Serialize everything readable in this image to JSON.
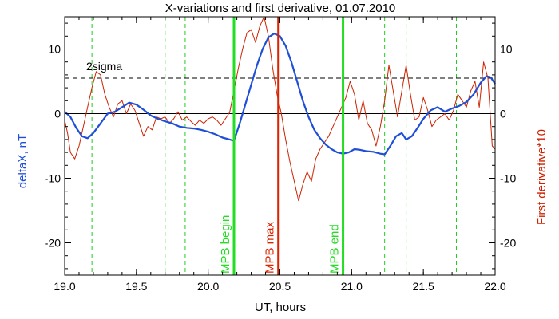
{
  "chart_data": {
    "type": "line",
    "title": "X-variations and first derivative, 01.07.2010",
    "xlabel": "UT, hours",
    "ylabel_left": "deltaX, nT",
    "ylabel_right": "First derivative*10",
    "xlim": [
      19.0,
      22.0
    ],
    "ylim": [
      -25,
      15
    ],
    "xticks": [
      "19.0",
      "19.5",
      "20.0",
      "20.5",
      "21.0",
      "21.5",
      "22.0"
    ],
    "xtick_values": [
      19.0,
      19.5,
      20.0,
      20.5,
      21.0,
      21.5,
      22.0
    ],
    "yticks": [
      "-20",
      "-10",
      "0",
      "10"
    ],
    "ytick_values": [
      -20,
      -10,
      0,
      10
    ],
    "grid": false,
    "colors": {
      "deltaX": "#1f4fd6",
      "derivative": "#cc2200",
      "mpb_begin_end": "#22dd22",
      "mpb_max": "#dd2200",
      "dashed_green": "#22cc22",
      "sigma": "#000000"
    },
    "sigma_line": {
      "label": "2sigma",
      "y": 5.5
    },
    "zero_line_y": 0,
    "markers": [
      {
        "label": "MPB begin",
        "x": 20.18,
        "color": "#22dd22"
      },
      {
        "label": "MPB max",
        "x": 20.49,
        "color": "#dd2200"
      },
      {
        "label": "MPB end",
        "x": 20.94,
        "color": "#22dd22"
      }
    ],
    "dashed_verticals": [
      19.19,
      19.7,
      19.84,
      21.23,
      21.38,
      21.73
    ],
    "series": [
      {
        "name": "deltaX",
        "x": [
          19.0,
          19.04,
          19.08,
          19.12,
          19.16,
          19.2,
          19.25,
          19.3,
          19.35,
          19.4,
          19.45,
          19.5,
          19.55,
          19.6,
          19.65,
          19.7,
          19.75,
          19.8,
          19.85,
          19.9,
          19.95,
          20.0,
          20.05,
          20.1,
          20.15,
          20.18,
          20.22,
          20.26,
          20.3,
          20.34,
          20.38,
          20.42,
          20.46,
          20.5,
          20.54,
          20.58,
          20.62,
          20.66,
          20.7,
          20.74,
          20.78,
          20.82,
          20.86,
          20.9,
          20.94,
          20.98,
          21.02,
          21.06,
          21.1,
          21.15,
          21.2,
          21.23,
          21.27,
          21.31,
          21.35,
          21.38,
          21.42,
          21.46,
          21.5,
          21.55,
          21.6,
          21.65,
          21.7,
          21.75,
          21.8,
          21.85,
          21.9,
          21.94,
          21.97,
          22.0
        ],
        "values": [
          0.3,
          -0.5,
          -2.2,
          -3.5,
          -3.8,
          -3.0,
          -1.5,
          0.0,
          0.3,
          1.0,
          1.7,
          1.4,
          0.6,
          -0.3,
          -0.8,
          -1.2,
          -1.5,
          -2.0,
          -2.2,
          -2.3,
          -2.5,
          -2.8,
          -3.2,
          -3.7,
          -4.0,
          -4.2,
          -1.5,
          1.5,
          4.5,
          7.5,
          10.0,
          11.8,
          12.4,
          12.0,
          10.5,
          8.0,
          5.0,
          2.0,
          -0.5,
          -2.5,
          -3.8,
          -4.8,
          -5.5,
          -6.0,
          -6.2,
          -6.0,
          -5.5,
          -5.6,
          -5.8,
          -5.9,
          -6.2,
          -6.3,
          -5.0,
          -3.5,
          -3.0,
          -4.0,
          -3.5,
          -2.2,
          -0.8,
          0.5,
          1.0,
          0.3,
          0.8,
          1.2,
          1.8,
          3.0,
          4.8,
          5.8,
          5.6,
          4.6
        ]
      },
      {
        "name": "derivative",
        "x": [
          19.0,
          19.02,
          19.04,
          19.07,
          19.1,
          19.13,
          19.16,
          19.19,
          19.22,
          19.25,
          19.28,
          19.31,
          19.34,
          19.37,
          19.4,
          19.43,
          19.46,
          19.49,
          19.52,
          19.55,
          19.58,
          19.61,
          19.64,
          19.67,
          19.7,
          19.73,
          19.76,
          19.79,
          19.82,
          19.85,
          19.88,
          19.91,
          19.94,
          19.97,
          20.0,
          20.03,
          20.06,
          20.09,
          20.12,
          20.15,
          20.18,
          20.21,
          20.24,
          20.27,
          20.3,
          20.33,
          20.36,
          20.39,
          20.42,
          20.45,
          20.48,
          20.51,
          20.54,
          20.57,
          20.6,
          20.63,
          20.66,
          20.69,
          20.72,
          20.75,
          20.78,
          20.81,
          20.84,
          20.87,
          20.9,
          20.93,
          20.96,
          20.99,
          21.02,
          21.05,
          21.08,
          21.11,
          21.14,
          21.17,
          21.2,
          21.23,
          21.26,
          21.29,
          21.32,
          21.35,
          21.38,
          21.41,
          21.44,
          21.47,
          21.5,
          21.53,
          21.56,
          21.59,
          21.62,
          21.65,
          21.68,
          21.71,
          21.74,
          21.77,
          21.8,
          21.83,
          21.86,
          21.89,
          21.92,
          21.95,
          21.98,
          22.0
        ],
        "values": [
          -1.0,
          -3.0,
          -6.0,
          -7.0,
          -5.0,
          -2.0,
          1.0,
          4.0,
          6.5,
          6.0,
          3.0,
          1.0,
          -0.5,
          1.5,
          2.0,
          0.0,
          1.5,
          0.5,
          -1.5,
          -3.5,
          -2.0,
          -2.5,
          -0.5,
          -0.8,
          -0.5,
          -1.5,
          -0.8,
          0.3,
          -1.0,
          -0.5,
          -1.2,
          -1.8,
          -1.0,
          -1.5,
          -0.8,
          -0.5,
          -1.0,
          -1.8,
          -0.8,
          0.2,
          3.5,
          7.0,
          10.0,
          12.5,
          13.0,
          11.0,
          13.5,
          15.0,
          12.0,
          7.0,
          3.0,
          0.0,
          -4.0,
          -7.5,
          -10.5,
          -13.5,
          -11.0,
          -9.0,
          -10.5,
          -7.0,
          -5.5,
          -4.5,
          -3.5,
          -2.0,
          -0.5,
          1.0,
          2.5,
          5.0,
          3.0,
          -1.0,
          2.0,
          -1.5,
          -2.5,
          -5.0,
          -2.0,
          2.0,
          7.5,
          3.5,
          -0.5,
          3.5,
          7.5,
          3.0,
          -1.0,
          -0.5,
          2.5,
          0.5,
          -2.0,
          -1.0,
          -0.5,
          0.0,
          -1.0,
          0.5,
          3.0,
          2.0,
          1.0,
          3.5,
          5.0,
          1.0,
          8.0,
          5.5,
          -5.0,
          -5.5
        ]
      }
    ]
  }
}
